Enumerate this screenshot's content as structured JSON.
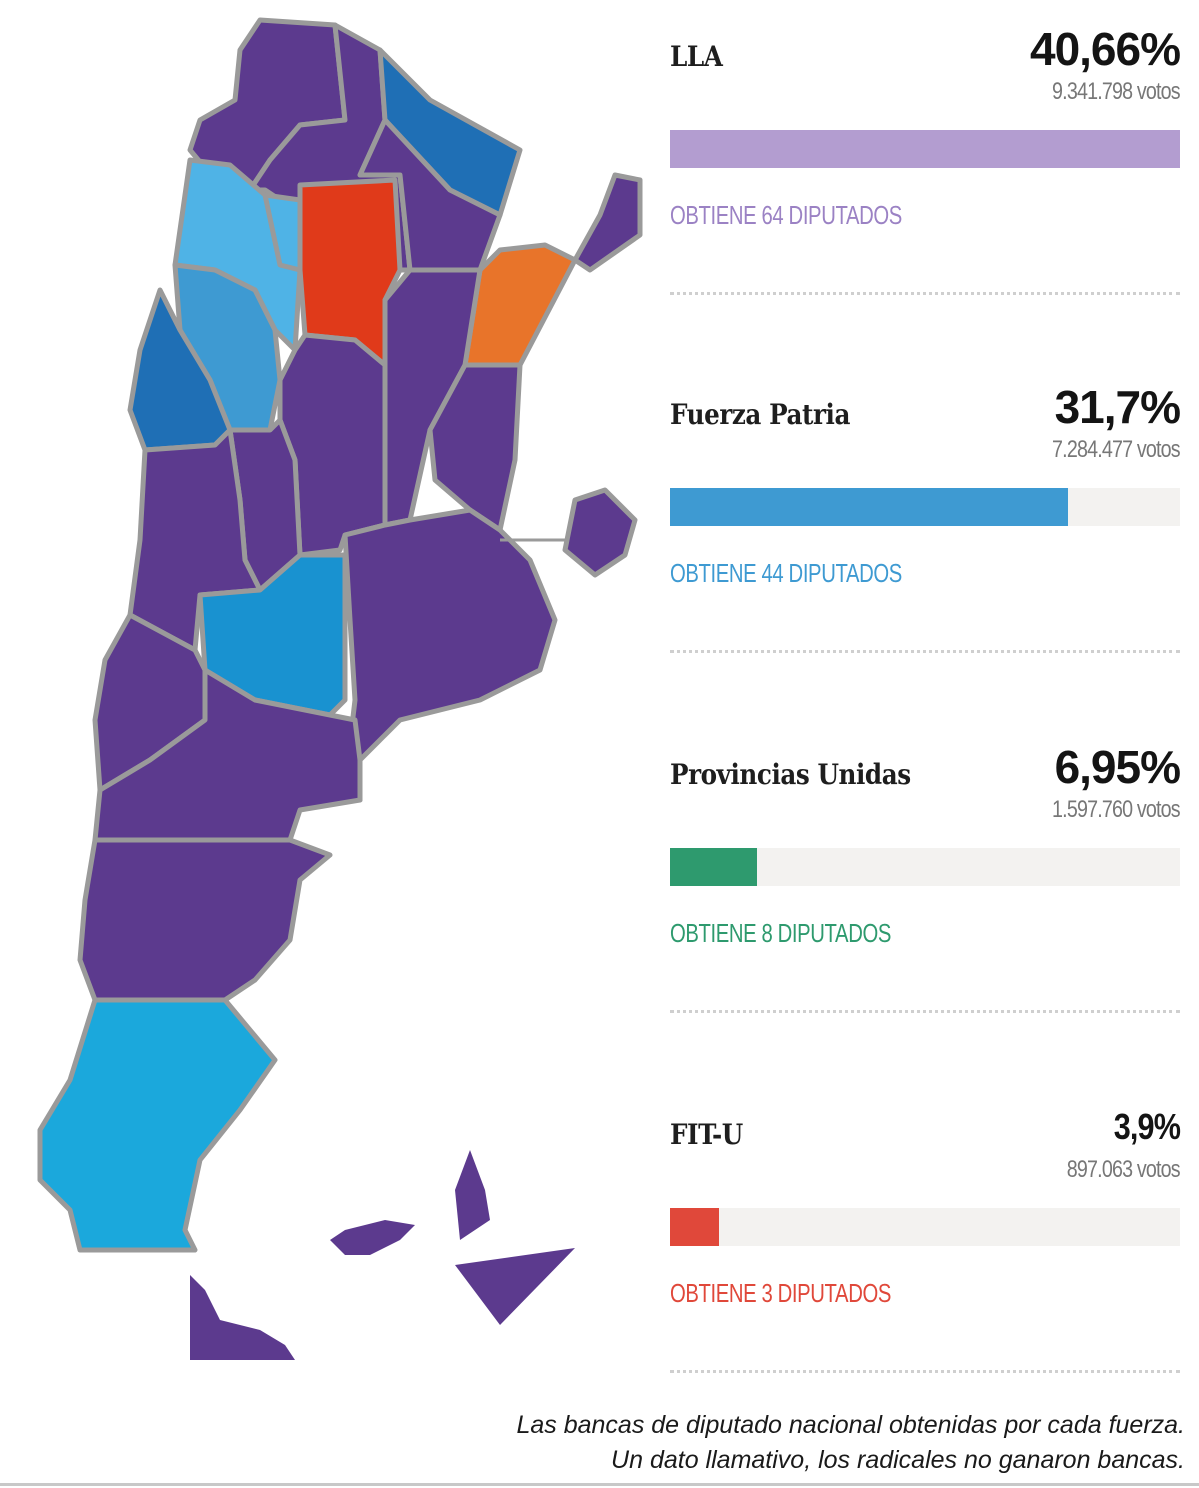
{
  "colors": {
    "purple": "#5c3a8e",
    "purple_light": "#b39dd0",
    "blue": "#3e9ad2",
    "blue_light": "#4fb3e6",
    "blue_dark": "#1f6fb5",
    "green": "#2e9a6e",
    "red": "#e0483a",
    "orange": "#e8742a",
    "orange_red": "#e03a1a",
    "border": "#9a9a9a"
  },
  "chart_data": {
    "type": "bar",
    "orientation": "horizontal",
    "xlim": [
      0,
      40.66
    ],
    "parties": [
      {
        "name": "LLA",
        "percent_label": "40,66%",
        "value": 40.66,
        "votes_label": "9.341.798 votos",
        "seats_label": "OBTIENE 64 DIPUTADOS",
        "seats": 64,
        "color": "#b39dd0",
        "label_color": "#9b82c4"
      },
      {
        "name": "Fuerza Patria",
        "percent_label": "31,7%",
        "value": 31.7,
        "votes_label": "7.284.477 votos",
        "seats_label": "OBTIENE 44 DIPUTADOS",
        "seats": 44,
        "color": "#3e9ad2",
        "label_color": "#3e9ad2"
      },
      {
        "name": "Provincias Unidas",
        "percent_label": "6,95%",
        "value": 6.95,
        "votes_label": "1.597.760 votos",
        "seats_label": "OBTIENE 8 DIPUTADOS",
        "seats": 8,
        "color": "#2e9a6e",
        "label_color": "#2e9a6e"
      },
      {
        "name": "FIT-U",
        "percent_label": "3,9%",
        "value": 3.9,
        "votes_label": "897.063 votos",
        "seats_label": "OBTIENE 3 DIPUTADOS",
        "seats": 3,
        "color": "#e0483a",
        "label_color": "#e0483a"
      }
    ]
  },
  "caption": {
    "line1": "Las bancas de diputado nacional obtenidas por cada fuerza.",
    "line2": "Un dato llamativo, los radicales no ganaron bancas."
  }
}
